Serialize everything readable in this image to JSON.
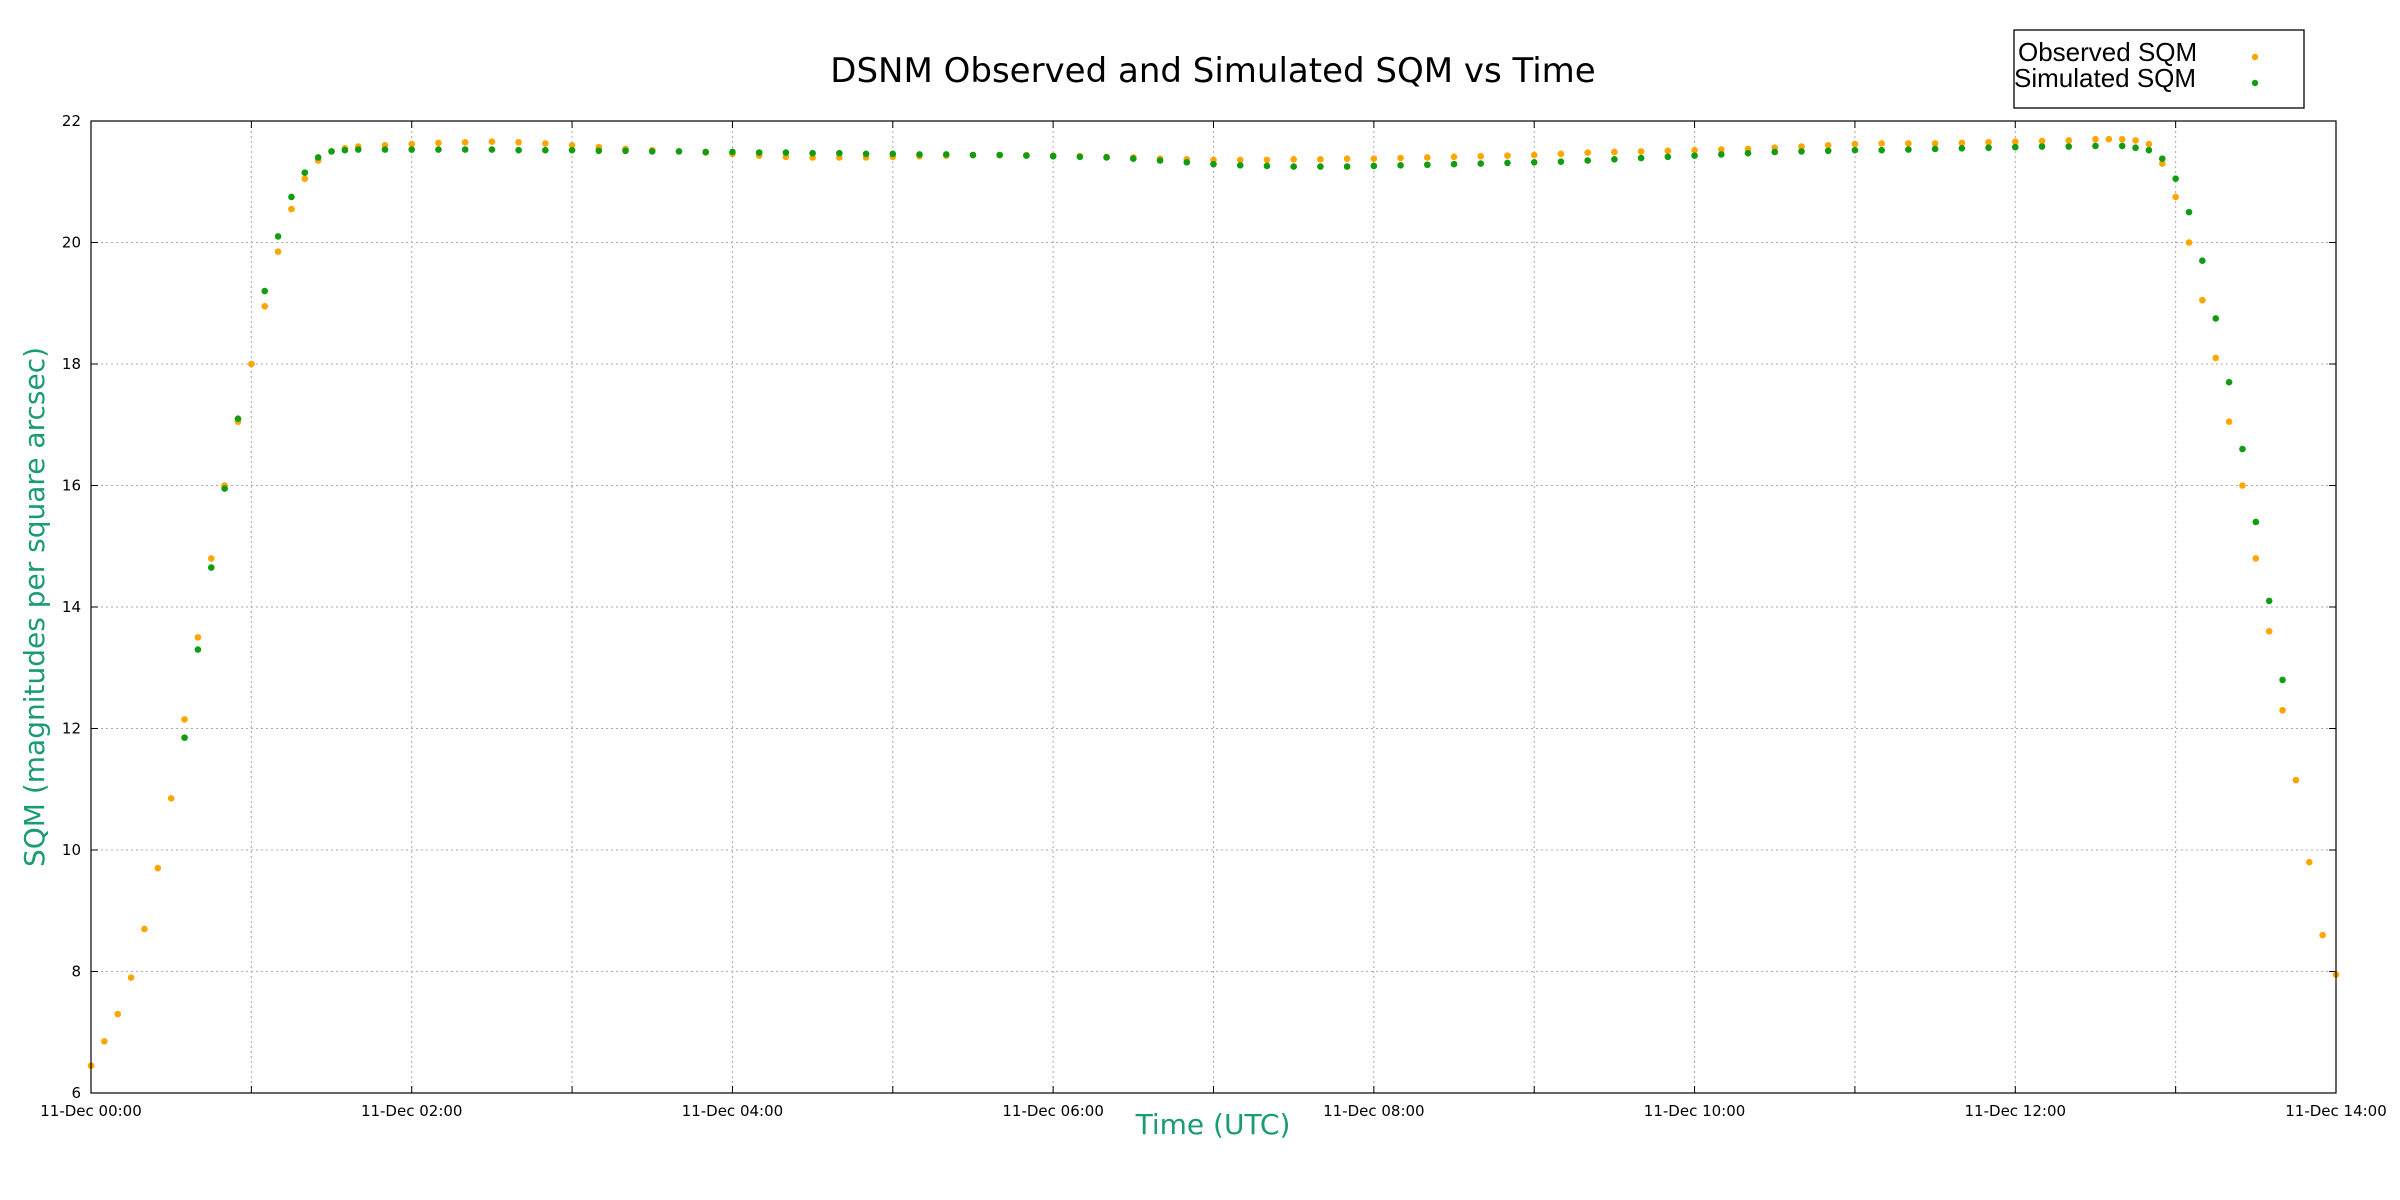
{
  "chart_data": {
    "type": "scatter",
    "title": "DSNM Observed and Simulated SQM vs Time",
    "xlabel": "Time (UTC)",
    "ylabel": "SQM (magnitudes per square arcsec)",
    "xlim": [
      "11-Dec 00:00",
      "11-Dec 14:00"
    ],
    "ylim": [
      6,
      22
    ],
    "x_ticks": [
      "11-Dec 00:00",
      "11-Dec 02:00",
      "11-Dec 04:00",
      "11-Dec 06:00",
      "11-Dec 08:00",
      "11-Dec 10:00",
      "11-Dec 12:00",
      "11-Dec 14:00"
    ],
    "y_ticks": [
      6,
      8,
      10,
      12,
      14,
      16,
      18,
      20,
      22
    ],
    "grid": true,
    "legend_position": "top-right",
    "axis_label_color": "#1a9c73",
    "series": [
      {
        "name": "Observed SQM",
        "color": "#ffa500",
        "points": [
          [
            "11-Dec 00:00",
            6.45
          ],
          [
            "11-Dec 00:05",
            6.85
          ],
          [
            "11-Dec 00:10",
            7.3
          ],
          [
            "11-Dec 00:15",
            7.9
          ],
          [
            "11-Dec 00:20",
            8.7
          ],
          [
            "11-Dec 00:25",
            9.7
          ],
          [
            "11-Dec 00:30",
            10.85
          ],
          [
            "11-Dec 00:35",
            12.15
          ],
          [
            "11-Dec 00:40",
            13.5
          ],
          [
            "11-Dec 00:45",
            14.8
          ],
          [
            "11-Dec 00:50",
            16.0
          ],
          [
            "11-Dec 00:55",
            17.05
          ],
          [
            "11-Dec 01:00",
            18.0
          ],
          [
            "11-Dec 01:05",
            18.95
          ],
          [
            "11-Dec 01:10",
            19.85
          ],
          [
            "11-Dec 01:15",
            20.55
          ],
          [
            "11-Dec 01:20",
            21.05
          ],
          [
            "11-Dec 01:25",
            21.35
          ],
          [
            "11-Dec 01:30",
            21.5
          ],
          [
            "11-Dec 01:35",
            21.55
          ],
          [
            "11-Dec 01:40",
            21.58
          ],
          [
            "11-Dec 01:50",
            21.6
          ],
          [
            "11-Dec 02:00",
            21.62
          ],
          [
            "11-Dec 02:10",
            21.64
          ],
          [
            "11-Dec 02:20",
            21.65
          ],
          [
            "11-Dec 02:30",
            21.66
          ],
          [
            "11-Dec 02:40",
            21.65
          ],
          [
            "11-Dec 02:50",
            21.63
          ],
          [
            "11-Dec 03:00",
            21.6
          ],
          [
            "11-Dec 03:10",
            21.57
          ],
          [
            "11-Dec 03:20",
            21.54
          ],
          [
            "11-Dec 03:30",
            21.52
          ],
          [
            "11-Dec 03:40",
            21.5
          ],
          [
            "11-Dec 03:50",
            21.48
          ],
          [
            "11-Dec 04:00",
            21.46
          ],
          [
            "11-Dec 04:10",
            21.43
          ],
          [
            "11-Dec 04:20",
            21.41
          ],
          [
            "11-Dec 04:30",
            21.4
          ],
          [
            "11-Dec 04:40",
            21.4
          ],
          [
            "11-Dec 04:50",
            21.4
          ],
          [
            "11-Dec 05:00",
            21.41
          ],
          [
            "11-Dec 05:10",
            21.42
          ],
          [
            "11-Dec 05:20",
            21.43
          ],
          [
            "11-Dec 05:30",
            21.44
          ],
          [
            "11-Dec 05:40",
            21.44
          ],
          [
            "11-Dec 05:50",
            21.44
          ],
          [
            "11-Dec 06:00",
            21.43
          ],
          [
            "11-Dec 06:10",
            21.42
          ],
          [
            "11-Dec 06:20",
            21.41
          ],
          [
            "11-Dec 06:30",
            21.4
          ],
          [
            "11-Dec 06:40",
            21.38
          ],
          [
            "11-Dec 06:50",
            21.37
          ],
          [
            "11-Dec 07:00",
            21.36
          ],
          [
            "11-Dec 07:10",
            21.36
          ],
          [
            "11-Dec 07:20",
            21.36
          ],
          [
            "11-Dec 07:30",
            21.37
          ],
          [
            "11-Dec 07:40",
            21.37
          ],
          [
            "11-Dec 07:50",
            21.38
          ],
          [
            "11-Dec 08:00",
            21.38
          ],
          [
            "11-Dec 08:10",
            21.39
          ],
          [
            "11-Dec 08:20",
            21.4
          ],
          [
            "11-Dec 08:30",
            21.41
          ],
          [
            "11-Dec 08:40",
            21.42
          ],
          [
            "11-Dec 08:50",
            21.43
          ],
          [
            "11-Dec 09:00",
            21.44
          ],
          [
            "11-Dec 09:10",
            21.46
          ],
          [
            "11-Dec 09:20",
            21.48
          ],
          [
            "11-Dec 09:30",
            21.49
          ],
          [
            "11-Dec 09:40",
            21.5
          ],
          [
            "11-Dec 09:50",
            21.51
          ],
          [
            "11-Dec 10:00",
            21.52
          ],
          [
            "11-Dec 10:10",
            21.53
          ],
          [
            "11-Dec 10:20",
            21.54
          ],
          [
            "11-Dec 10:30",
            21.56
          ],
          [
            "11-Dec 10:40",
            21.58
          ],
          [
            "11-Dec 10:50",
            21.6
          ],
          [
            "11-Dec 11:00",
            21.62
          ],
          [
            "11-Dec 11:10",
            21.63
          ],
          [
            "11-Dec 11:20",
            21.63
          ],
          [
            "11-Dec 11:30",
            21.63
          ],
          [
            "11-Dec 11:40",
            21.64
          ],
          [
            "11-Dec 11:50",
            21.65
          ],
          [
            "11-Dec 12:00",
            21.66
          ],
          [
            "11-Dec 12:10",
            21.67
          ],
          [
            "11-Dec 12:20",
            21.68
          ],
          [
            "11-Dec 12:30",
            21.7
          ],
          [
            "11-Dec 12:35",
            21.7
          ],
          [
            "11-Dec 12:40",
            21.7
          ],
          [
            "11-Dec 12:45",
            21.68
          ],
          [
            "11-Dec 12:50",
            21.62
          ],
          [
            "11-Dec 12:55",
            21.3
          ],
          [
            "11-Dec 13:00",
            20.75
          ],
          [
            "11-Dec 13:05",
            20.0
          ],
          [
            "11-Dec 13:10",
            19.05
          ],
          [
            "11-Dec 13:15",
            18.1
          ],
          [
            "11-Dec 13:20",
            17.05
          ],
          [
            "11-Dec 13:25",
            16.0
          ],
          [
            "11-Dec 13:30",
            14.8
          ],
          [
            "11-Dec 13:35",
            13.6
          ],
          [
            "11-Dec 13:40",
            12.3
          ],
          [
            "11-Dec 13:45",
            11.15
          ],
          [
            "11-Dec 13:50",
            9.8
          ],
          [
            "11-Dec 13:55",
            8.6
          ],
          [
            "11-Dec 14:00",
            7.95
          ]
        ]
      },
      {
        "name": "Simulated SQM",
        "color": "#119c11",
        "points": [
          [
            "11-Dec 00:35",
            11.85
          ],
          [
            "11-Dec 00:40",
            13.3
          ],
          [
            "11-Dec 00:45",
            14.65
          ],
          [
            "11-Dec 00:50",
            15.95
          ],
          [
            "11-Dec 00:55",
            17.1
          ],
          [
            "11-Dec 01:05",
            19.2
          ],
          [
            "11-Dec 01:10",
            20.1
          ],
          [
            "11-Dec 01:15",
            20.75
          ],
          [
            "11-Dec 01:20",
            21.15
          ],
          [
            "11-Dec 01:25",
            21.4
          ],
          [
            "11-Dec 01:30",
            21.5
          ],
          [
            "11-Dec 01:35",
            21.52
          ],
          [
            "11-Dec 01:40",
            21.53
          ],
          [
            "11-Dec 01:50",
            21.53
          ],
          [
            "11-Dec 02:00",
            21.53
          ],
          [
            "11-Dec 02:10",
            21.53
          ],
          [
            "11-Dec 02:20",
            21.53
          ],
          [
            "11-Dec 02:30",
            21.53
          ],
          [
            "11-Dec 02:40",
            21.52
          ],
          [
            "11-Dec 02:50",
            21.52
          ],
          [
            "11-Dec 03:00",
            21.52
          ],
          [
            "11-Dec 03:10",
            21.51
          ],
          [
            "11-Dec 03:20",
            21.51
          ],
          [
            "11-Dec 03:30",
            21.5
          ],
          [
            "11-Dec 03:40",
            21.5
          ],
          [
            "11-Dec 03:50",
            21.49
          ],
          [
            "11-Dec 04:00",
            21.49
          ],
          [
            "11-Dec 04:10",
            21.48
          ],
          [
            "11-Dec 04:20",
            21.48
          ],
          [
            "11-Dec 04:30",
            21.47
          ],
          [
            "11-Dec 04:40",
            21.47
          ],
          [
            "11-Dec 04:50",
            21.46
          ],
          [
            "11-Dec 05:00",
            21.46
          ],
          [
            "11-Dec 05:10",
            21.45
          ],
          [
            "11-Dec 05:20",
            21.45
          ],
          [
            "11-Dec 05:30",
            21.44
          ],
          [
            "11-Dec 05:40",
            21.44
          ],
          [
            "11-Dec 05:50",
            21.43
          ],
          [
            "11-Dec 06:00",
            21.42
          ],
          [
            "11-Dec 06:10",
            21.41
          ],
          [
            "11-Dec 06:20",
            21.4
          ],
          [
            "11-Dec 06:30",
            21.38
          ],
          [
            "11-Dec 06:40",
            21.35
          ],
          [
            "11-Dec 06:50",
            21.32
          ],
          [
            "11-Dec 07:00",
            21.29
          ],
          [
            "11-Dec 07:10",
            21.27
          ],
          [
            "11-Dec 07:20",
            21.26
          ],
          [
            "11-Dec 07:30",
            21.25
          ],
          [
            "11-Dec 07:40",
            21.25
          ],
          [
            "11-Dec 07:50",
            21.25
          ],
          [
            "11-Dec 08:00",
            21.26
          ],
          [
            "11-Dec 08:10",
            21.27
          ],
          [
            "11-Dec 08:20",
            21.28
          ],
          [
            "11-Dec 08:30",
            21.29
          ],
          [
            "11-Dec 08:40",
            21.3
          ],
          [
            "11-Dec 08:50",
            21.31
          ],
          [
            "11-Dec 09:00",
            21.32
          ],
          [
            "11-Dec 09:10",
            21.33
          ],
          [
            "11-Dec 09:20",
            21.35
          ],
          [
            "11-Dec 09:30",
            21.37
          ],
          [
            "11-Dec 09:40",
            21.39
          ],
          [
            "11-Dec 09:50",
            21.41
          ],
          [
            "11-Dec 10:00",
            21.43
          ],
          [
            "11-Dec 10:10",
            21.45
          ],
          [
            "11-Dec 10:20",
            21.47
          ],
          [
            "11-Dec 10:30",
            21.49
          ],
          [
            "11-Dec 10:40",
            21.5
          ],
          [
            "11-Dec 10:50",
            21.51
          ],
          [
            "11-Dec 11:00",
            21.52
          ],
          [
            "11-Dec 11:10",
            21.52
          ],
          [
            "11-Dec 11:20",
            21.53
          ],
          [
            "11-Dec 11:30",
            21.54
          ],
          [
            "11-Dec 11:40",
            21.55
          ],
          [
            "11-Dec 11:50",
            21.56
          ],
          [
            "11-Dec 12:00",
            21.57
          ],
          [
            "11-Dec 12:10",
            21.58
          ],
          [
            "11-Dec 12:20",
            21.58
          ],
          [
            "11-Dec 12:30",
            21.59
          ],
          [
            "11-Dec 12:40",
            21.59
          ],
          [
            "11-Dec 12:45",
            21.56
          ],
          [
            "11-Dec 12:50",
            21.52
          ],
          [
            "11-Dec 12:55",
            21.38
          ],
          [
            "11-Dec 13:00",
            21.05
          ],
          [
            "11-Dec 13:05",
            20.5
          ],
          [
            "11-Dec 13:10",
            19.7
          ],
          [
            "11-Dec 13:15",
            18.75
          ],
          [
            "11-Dec 13:20",
            17.7
          ],
          [
            "11-Dec 13:25",
            16.6
          ],
          [
            "11-Dec 13:30",
            15.4
          ],
          [
            "11-Dec 13:35",
            14.1
          ],
          [
            "11-Dec 13:40",
            12.8
          ]
        ]
      }
    ]
  }
}
